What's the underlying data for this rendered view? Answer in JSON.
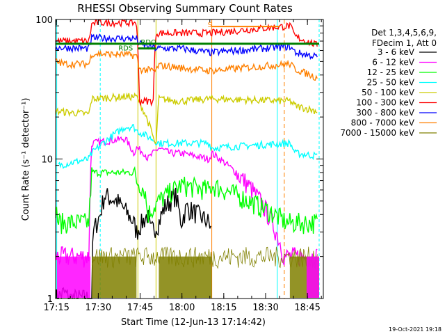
{
  "chart_data": {
    "type": "line",
    "title": "RHESSI Observing Summary Count Rates",
    "ylabel": "Count Rate (s⁻¹ detector⁻¹)",
    "xlabel": "Start Time (12-Jun-13 17:14:42)",
    "yscale": "log",
    "ylim": [
      1,
      100
    ],
    "xlim_minutes": [
      0,
      96
    ],
    "x_ticks": [
      "17:15",
      "17:30",
      "17:45",
      "18:00",
      "18:15",
      "18:30",
      "18:45"
    ],
    "x_tick_minutes": [
      0.3,
      15.3,
      30.3,
      45.3,
      60.3,
      75.3,
      90.3
    ],
    "y_ticks": [
      "1",
      "10",
      "100"
    ],
    "y_tick_values": [
      1,
      10,
      100
    ],
    "legend_header": [
      "Det 1,3,4,5,6,9,",
      "FDecim 1, Att 0"
    ],
    "series": [
      {
        "name": "3 - 6 keV",
        "color": "#000000",
        "x": [
          0,
          3,
          5,
          13,
          13.5,
          16,
          17,
          17.5,
          22,
          26,
          28,
          29,
          33,
          34,
          37,
          39,
          43,
          45,
          47,
          55,
          56
        ],
        "y": [
          1,
          1.1,
          1,
          1,
          3,
          4,
          5,
          5.5,
          5,
          4,
          3.5,
          3,
          4,
          3,
          3.5,
          4.5,
          5.5,
          3.5,
          4.5,
          3.5,
          3
        ]
      },
      {
        "name": "6 - 12 keV",
        "color": "#ff00ff",
        "x": [
          0,
          12,
          13,
          25,
          28,
          29,
          32,
          33,
          37,
          41,
          45,
          55,
          56,
          82,
          83,
          90,
          94
        ],
        "y": [
          2,
          2,
          13,
          14,
          11,
          12,
          11,
          10,
          12,
          11,
          11,
          10,
          11,
          2,
          2,
          2,
          2
        ]
      },
      {
        "name": "12 - 25 keV",
        "color": "#00ff00",
        "x": [
          0,
          1,
          12,
          13,
          25,
          28,
          29,
          32,
          33,
          37,
          45,
          55,
          56,
          83,
          84,
          94
        ],
        "y": [
          4.5,
          3.5,
          3.5,
          8,
          8,
          8,
          7,
          6,
          4,
          5,
          6.5,
          6,
          6.5,
          3.5,
          3.5,
          3.5
        ]
      },
      {
        "name": "25 - 50 keV",
        "color": "#00ffff",
        "x": [
          1,
          12,
          13,
          25,
          28,
          29,
          37,
          45,
          55,
          56,
          84,
          86,
          94
        ],
        "y": [
          9,
          10,
          11,
          17,
          17,
          16,
          13,
          13,
          13,
          12,
          13,
          11,
          10.5
        ]
      },
      {
        "name": "50 - 100 keV",
        "color": "#cccc00",
        "x": [
          0,
          12,
          13,
          25,
          29,
          36,
          37,
          45,
          55,
          56,
          84,
          86,
          94
        ],
        "y": [
          22,
          21,
          27,
          28,
          28,
          12,
          27,
          26,
          27,
          27,
          26,
          24,
          22
        ]
      },
      {
        "name": "100 - 300 keV",
        "color": "#ff0000",
        "x": [
          0,
          12,
          13,
          15,
          25,
          29,
          30,
          35,
          36,
          37,
          45,
          55,
          56,
          84,
          86,
          94
        ],
        "y": [
          70,
          70,
          93,
          95,
          95,
          95,
          26,
          26,
          80,
          80,
          80,
          80,
          80,
          90,
          75,
          65
        ]
      },
      {
        "name": "300 - 800 keV",
        "color": "#0000ff",
        "x": [
          0,
          12,
          13,
          25,
          29,
          30,
          36,
          37,
          45,
          55,
          56,
          84,
          86,
          94
        ],
        "y": [
          63,
          62,
          74,
          73,
          73,
          67,
          62,
          62,
          62,
          58,
          58,
          64,
          58,
          54
        ]
      },
      {
        "name": "800 - 7000 keV",
        "color": "#ff8000",
        "x": [
          0,
          3,
          12,
          13,
          25,
          29,
          30,
          35,
          36,
          37,
          45,
          55,
          56,
          84,
          86,
          94
        ],
        "y": [
          50,
          48,
          48,
          57,
          56,
          55,
          44,
          43,
          43,
          47,
          45,
          43,
          43,
          48,
          44,
          38
        ]
      },
      {
        "name": "7000 - 15000 keV",
        "color": "#808000",
        "x": [
          13,
          29,
          37,
          56,
          84,
          94
        ],
        "y": [
          2,
          2,
          2,
          2,
          2,
          2
        ]
      }
    ],
    "annotations": [
      "S",
      "RDS",
      "RDO"
    ]
  },
  "footer": {
    "timestamp": "19-Oct-2021 19:18"
  }
}
